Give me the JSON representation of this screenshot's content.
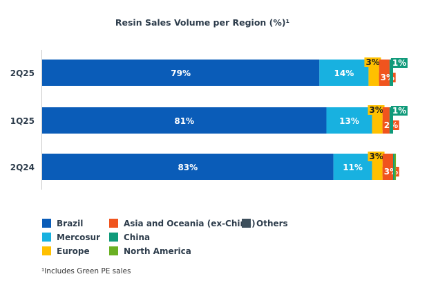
{
  "chart_data": {
    "type": "bar",
    "orientation": "horizontal",
    "stacked": true,
    "title": "Resin Sales Volume per Region (%)¹",
    "categories": [
      "2Q25",
      "1Q25",
      "2Q24"
    ],
    "series": [
      {
        "name": "Brazil",
        "color": "#0a5cb8",
        "values": [
          79,
          81,
          83
        ],
        "labels": [
          "79%",
          "81%",
          "83%"
        ]
      },
      {
        "name": "Mercosur",
        "color": "#18b1e0",
        "values": [
          14,
          13,
          11
        ],
        "labels": [
          "14%",
          "13%",
          "11%"
        ]
      },
      {
        "name": "Europe",
        "color": "#ffc000",
        "values": [
          3,
          3,
          3
        ],
        "labels": [
          "3%",
          "3%",
          "3%"
        ]
      },
      {
        "name": "Asia and Oceania (ex-China)",
        "color": "#f0541e",
        "values": [
          3,
          2,
          3
        ],
        "labels": [
          "3%",
          "2%",
          "3%"
        ]
      },
      {
        "name": "China",
        "color": "#109a7a",
        "values": [
          1,
          1,
          0.4
        ],
        "labels": [
          "1%",
          "1%",
          ""
        ]
      },
      {
        "name": "North America",
        "color": "#6ab023",
        "values": [
          0,
          0,
          0.4
        ],
        "labels": [
          "",
          "",
          ""
        ]
      },
      {
        "name": "Others",
        "color": "#3d4f5c",
        "values": [
          0,
          0,
          0
        ],
        "labels": [
          "",
          "",
          ""
        ]
      }
    ],
    "xlim": [
      0,
      100
    ],
    "legend_position": "bottom-left",
    "footnote": "¹Includes Green PE sales"
  }
}
